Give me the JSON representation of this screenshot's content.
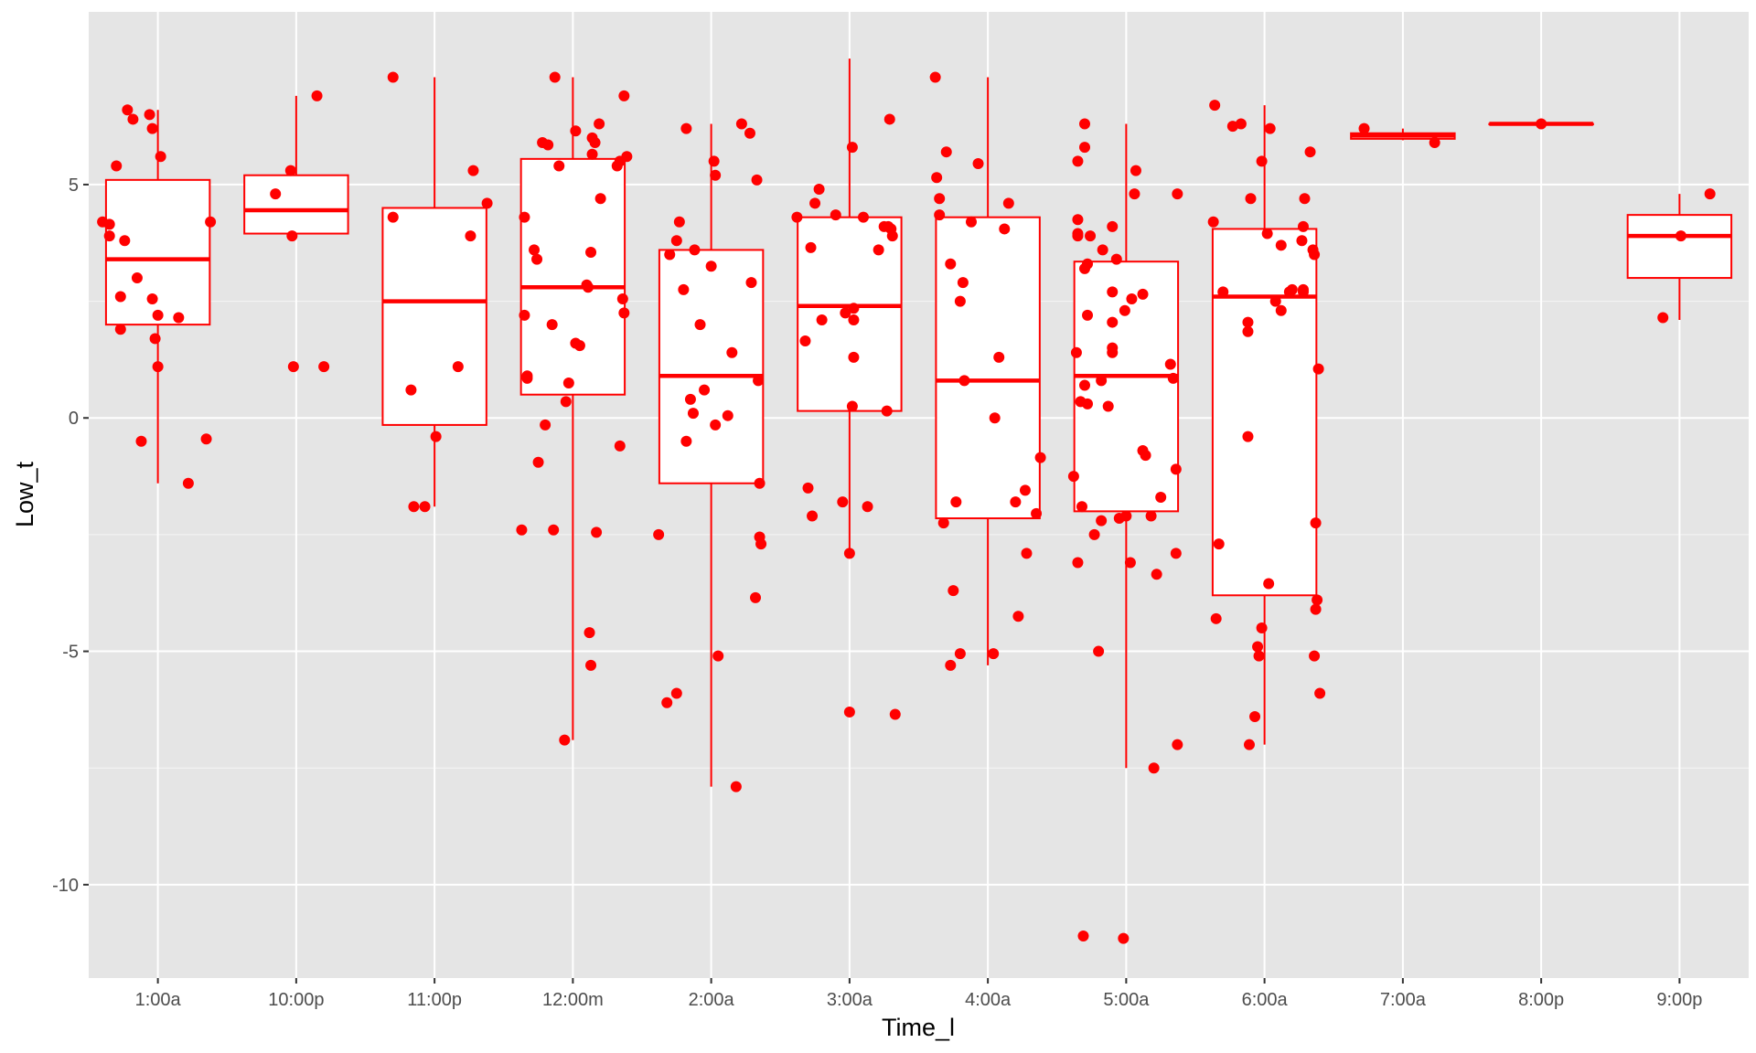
{
  "chart_data": {
    "type": "box",
    "xlabel": "Time_l",
    "ylabel": "Low_t",
    "ylim": [
      -12,
      8.7
    ],
    "y_ticks": [
      -10,
      -5,
      0,
      5
    ],
    "y_tick_labels": [
      "-10",
      "-5",
      "0",
      "5"
    ],
    "grid": true,
    "categories": [
      "1:00a",
      "10:00p",
      "11:00p",
      "12:00m",
      "2:00a",
      "3:00a",
      "4:00a",
      "5:00a",
      "6:00a",
      "7:00a",
      "8:00p",
      "9:00p"
    ],
    "boxes": [
      {
        "q1": 2.0,
        "median": 3.4,
        "q3": 5.1,
        "whisker_low": -1.4,
        "whisker_high": 6.6
      },
      {
        "q1": 3.95,
        "median": 4.45,
        "q3": 5.2,
        "whisker_low": 3.9,
        "whisker_high": 6.9
      },
      {
        "q1": -0.15,
        "median": 2.5,
        "q3": 4.5,
        "whisker_low": -1.9,
        "whisker_high": 7.3
      },
      {
        "q1": 0.5,
        "median": 2.8,
        "q3": 5.55,
        "whisker_low": -6.9,
        "whisker_high": 7.3
      },
      {
        "q1": -1.4,
        "median": 0.9,
        "q3": 3.6,
        "whisker_low": -7.9,
        "whisker_high": 6.3
      },
      {
        "q1": 0.15,
        "median": 2.4,
        "q3": 4.3,
        "whisker_low": -2.9,
        "whisker_high": 7.7
      },
      {
        "q1": -2.15,
        "median": 0.8,
        "q3": 4.3,
        "whisker_low": -5.3,
        "whisker_high": 7.3
      },
      {
        "q1": -2.0,
        "median": 0.9,
        "q3": 3.35,
        "whisker_low": -7.5,
        "whisker_high": 6.3
      },
      {
        "q1": -3.8,
        "median": 2.6,
        "q3": 4.05,
        "whisker_low": -7.0,
        "whisker_high": 6.7
      },
      {
        "q1": 5.98,
        "median": 6.05,
        "q3": 6.1,
        "whisker_low": 5.95,
        "whisker_high": 6.2
      },
      {
        "q1": 6.3,
        "median": 6.3,
        "q3": 6.3,
        "whisker_low": 6.3,
        "whisker_high": 6.3
      },
      {
        "q1": 3.0,
        "median": 3.9,
        "q3": 4.35,
        "whisker_low": 2.1,
        "whisker_high": 4.8
      }
    ],
    "points": [
      [
        [
          -0.4,
          4.2
        ],
        [
          -0.35,
          3.9
        ],
        [
          -0.35,
          4.15
        ],
        [
          -0.3,
          5.4
        ],
        [
          -0.27,
          2.6
        ],
        [
          -0.27,
          1.9
        ],
        [
          -0.24,
          3.8
        ],
        [
          -0.22,
          6.6
        ],
        [
          -0.18,
          6.4
        ],
        [
          -0.15,
          3.0
        ],
        [
          -0.12,
          -0.5
        ],
        [
          -0.06,
          6.5
        ],
        [
          -0.04,
          6.2
        ],
        [
          -0.04,
          2.55
        ],
        [
          -0.02,
          1.7
        ],
        [
          0.0,
          1.1
        ],
        [
          0.0,
          2.2
        ],
        [
          0.02,
          5.6
        ],
        [
          0.15,
          2.15
        ],
        [
          0.22,
          -1.4
        ],
        [
          0.35,
          -0.45
        ],
        [
          0.38,
          4.2
        ]
      ],
      [
        [
          -0.15,
          4.8
        ],
        [
          -0.02,
          1.1
        ],
        [
          -0.03,
          3.9
        ],
        [
          -0.04,
          5.3
        ],
        [
          0.15,
          6.9
        ],
        [
          0.2,
          1.1
        ]
      ],
      [
        [
          -0.3,
          7.3
        ],
        [
          -0.3,
          4.3
        ],
        [
          -0.17,
          0.6
        ],
        [
          -0.15,
          -1.9
        ],
        [
          -0.07,
          -1.9
        ],
        [
          0.01,
          -0.4
        ],
        [
          0.17,
          1.1
        ],
        [
          0.26,
          3.9
        ],
        [
          0.28,
          5.3
        ],
        [
          0.38,
          4.6
        ]
      ],
      [
        [
          -0.37,
          -2.4
        ],
        [
          -0.35,
          4.3
        ],
        [
          -0.35,
          2.2
        ],
        [
          -0.33,
          0.85
        ],
        [
          -0.33,
          0.9
        ],
        [
          -0.28,
          3.6
        ],
        [
          -0.26,
          3.4
        ],
        [
          -0.25,
          -0.95
        ],
        [
          -0.22,
          5.9
        ],
        [
          -0.2,
          -0.15
        ],
        [
          -0.18,
          5.85
        ],
        [
          -0.15,
          2.0
        ],
        [
          -0.14,
          -2.4
        ],
        [
          -0.13,
          7.3
        ],
        [
          -0.1,
          5.4
        ],
        [
          -0.06,
          -6.9
        ],
        [
          -0.05,
          0.35
        ],
        [
          -0.03,
          0.75
        ],
        [
          0.02,
          6.15
        ],
        [
          0.02,
          1.6
        ],
        [
          0.05,
          1.55
        ],
        [
          0.1,
          2.85
        ],
        [
          0.11,
          2.8
        ],
        [
          0.12,
          -4.6
        ],
        [
          0.13,
          -5.3
        ],
        [
          0.13,
          3.55
        ],
        [
          0.14,
          6.0
        ],
        [
          0.14,
          5.65
        ],
        [
          0.16,
          5.9
        ],
        [
          0.17,
          -2.45
        ],
        [
          0.19,
          6.3
        ],
        [
          0.2,
          4.7
        ],
        [
          0.32,
          5.4
        ],
        [
          0.34,
          5.5
        ],
        [
          0.34,
          -0.6
        ],
        [
          0.36,
          2.55
        ],
        [
          0.37,
          2.25
        ],
        [
          0.37,
          6.9
        ],
        [
          0.39,
          5.6
        ]
      ],
      [
        [
          -0.38,
          -2.5
        ],
        [
          -0.32,
          -6.1
        ],
        [
          -0.3,
          3.5
        ],
        [
          -0.25,
          3.8
        ],
        [
          -0.25,
          -5.9
        ],
        [
          -0.23,
          4.2
        ],
        [
          -0.2,
          2.75
        ],
        [
          -0.18,
          -0.5
        ],
        [
          -0.18,
          6.2
        ],
        [
          -0.15,
          0.4
        ],
        [
          -0.13,
          0.1
        ],
        [
          -0.12,
          3.6
        ],
        [
          -0.08,
          2.0
        ],
        [
          -0.05,
          0.6
        ],
        [
          0.0,
          3.25
        ],
        [
          0.02,
          5.5
        ],
        [
          0.03,
          5.2
        ],
        [
          0.03,
          -0.15
        ],
        [
          0.05,
          -5.1
        ],
        [
          0.12,
          0.05
        ],
        [
          0.15,
          1.4
        ],
        [
          0.18,
          -7.9
        ],
        [
          0.22,
          6.3
        ],
        [
          0.28,
          6.1
        ],
        [
          0.29,
          2.9
        ],
        [
          0.32,
          -3.85
        ],
        [
          0.33,
          5.1
        ],
        [
          0.34,
          0.8
        ],
        [
          0.35,
          -2.55
        ],
        [
          0.36,
          -2.7
        ],
        [
          0.35,
          -1.4
        ]
      ],
      [
        [
          -0.38,
          4.3
        ],
        [
          -0.32,
          1.65
        ],
        [
          -0.3,
          -1.5
        ],
        [
          -0.28,
          3.65
        ],
        [
          -0.27,
          -2.1
        ],
        [
          -0.25,
          4.6
        ],
        [
          -0.22,
          4.9
        ],
        [
          -0.2,
          2.1
        ],
        [
          -0.1,
          4.35
        ],
        [
          -0.05,
          -1.8
        ],
        [
          -0.03,
          2.25
        ],
        [
          0.0,
          -6.3
        ],
        [
          0.0,
          -2.9
        ],
        [
          0.02,
          5.8
        ],
        [
          0.03,
          2.35
        ],
        [
          0.03,
          2.1
        ],
        [
          0.03,
          1.3
        ],
        [
          0.02,
          0.25
        ],
        [
          0.1,
          4.3
        ],
        [
          0.13,
          -1.9
        ],
        [
          0.21,
          3.6
        ],
        [
          0.25,
          4.1
        ],
        [
          0.27,
          0.15
        ],
        [
          0.28,
          4.1
        ],
        [
          0.29,
          6.4
        ],
        [
          0.3,
          4.05
        ],
        [
          0.31,
          3.9
        ],
        [
          0.33,
          -6.35
        ]
      ],
      [
        [
          -0.38,
          7.3
        ],
        [
          -0.37,
          5.15
        ],
        [
          -0.35,
          4.7
        ],
        [
          -0.35,
          4.35
        ],
        [
          -0.3,
          5.7
        ],
        [
          -0.32,
          -2.25
        ],
        [
          -0.27,
          3.3
        ],
        [
          -0.27,
          -5.3
        ],
        [
          -0.25,
          -3.7
        ],
        [
          -0.23,
          -1.8
        ],
        [
          -0.2,
          -5.05
        ],
        [
          -0.2,
          2.5
        ],
        [
          -0.18,
          2.9
        ],
        [
          -0.17,
          0.8
        ],
        [
          -0.12,
          4.2
        ],
        [
          -0.07,
          5.45
        ],
        [
          0.05,
          0.0
        ],
        [
          0.04,
          -5.05
        ],
        [
          0.08,
          1.3
        ],
        [
          0.12,
          4.05
        ],
        [
          0.15,
          4.6
        ],
        [
          0.2,
          -1.8
        ],
        [
          0.22,
          -4.25
        ],
        [
          0.27,
          -1.55
        ],
        [
          0.28,
          -2.9
        ],
        [
          0.35,
          -2.05
        ],
        [
          0.38,
          -0.85
        ]
      ],
      [
        [
          -0.38,
          -1.25
        ],
        [
          -0.36,
          1.4
        ],
        [
          -0.35,
          5.5
        ],
        [
          -0.35,
          -3.1
        ],
        [
          -0.35,
          4.25
        ],
        [
          -0.35,
          3.9
        ],
        [
          -0.35,
          3.95
        ],
        [
          -0.33,
          0.35
        ],
        [
          -0.32,
          -1.9
        ],
        [
          -0.31,
          -11.1
        ],
        [
          -0.3,
          6.3
        ],
        [
          -0.3,
          5.8
        ],
        [
          -0.3,
          0.7
        ],
        [
          -0.3,
          3.2
        ],
        [
          -0.28,
          0.3
        ],
        [
          -0.28,
          3.3
        ],
        [
          -0.28,
          2.2
        ],
        [
          -0.26,
          3.9
        ],
        [
          -0.23,
          -2.5
        ],
        [
          -0.2,
          -5.0
        ],
        [
          -0.18,
          0.8
        ],
        [
          -0.18,
          -2.2
        ],
        [
          -0.17,
          3.6
        ],
        [
          -0.13,
          0.25
        ],
        [
          -0.1,
          4.1
        ],
        [
          -0.1,
          2.7
        ],
        [
          -0.1,
          2.05
        ],
        [
          -0.1,
          1.4
        ],
        [
          -0.1,
          1.5
        ],
        [
          -0.07,
          3.4
        ],
        [
          -0.05,
          -2.15
        ],
        [
          -0.02,
          -11.15
        ],
        [
          -0.01,
          2.3
        ],
        [
          0.0,
          -2.1
        ],
        [
          0.03,
          -3.1
        ],
        [
          0.04,
          2.55
        ],
        [
          0.06,
          4.8
        ],
        [
          0.07,
          5.3
        ],
        [
          0.12,
          -0.7
        ],
        [
          0.12,
          2.65
        ],
        [
          0.14,
          -0.8
        ],
        [
          0.18,
          -2.1
        ],
        [
          0.22,
          -3.35
        ],
        [
          0.2,
          -7.5
        ],
        [
          0.25,
          -1.7
        ],
        [
          0.32,
          1.15
        ],
        [
          0.34,
          0.85
        ],
        [
          0.36,
          -1.1
        ],
        [
          0.36,
          -2.9
        ],
        [
          0.37,
          -7.0
        ],
        [
          0.37,
          4.8
        ]
      ],
      [
        [
          -0.37,
          4.2
        ],
        [
          -0.36,
          6.7
        ],
        [
          -0.35,
          -4.3
        ],
        [
          -0.33,
          -2.7
        ],
        [
          -0.3,
          2.7
        ],
        [
          -0.23,
          6.25
        ],
        [
          -0.17,
          6.3
        ],
        [
          -0.12,
          -0.4
        ],
        [
          -0.11,
          -7.0
        ],
        [
          -0.12,
          2.05
        ],
        [
          -0.12,
          1.85
        ],
        [
          -0.1,
          4.7
        ],
        [
          -0.07,
          -6.4
        ],
        [
          -0.05,
          -4.9
        ],
        [
          -0.04,
          -5.1
        ],
        [
          -0.02,
          -4.5
        ],
        [
          -0.02,
          5.5
        ],
        [
          0.02,
          3.95
        ],
        [
          0.03,
          -3.55
        ],
        [
          0.04,
          6.2
        ],
        [
          0.08,
          2.5
        ],
        [
          0.12,
          2.3
        ],
        [
          0.12,
          3.7
        ],
        [
          0.18,
          2.7
        ],
        [
          0.2,
          2.75
        ],
        [
          0.28,
          2.7
        ],
        [
          0.28,
          4.1
        ],
        [
          0.27,
          3.8
        ],
        [
          0.28,
          2.75
        ],
        [
          0.29,
          4.7
        ],
        [
          0.33,
          5.7
        ],
        [
          0.35,
          3.6
        ],
        [
          0.36,
          3.5
        ],
        [
          0.37,
          -2.25
        ],
        [
          0.36,
          -5.1
        ],
        [
          0.37,
          -4.1
        ],
        [
          0.38,
          -3.9
        ],
        [
          0.39,
          1.05
        ],
        [
          0.4,
          -5.9
        ]
      ],
      [
        [
          -0.28,
          6.2
        ],
        [
          0.23,
          5.9
        ]
      ],
      [
        [
          0.0,
          6.3
        ]
      ],
      [
        [
          -0.12,
          2.15
        ],
        [
          0.01,
          3.9
        ],
        [
          0.22,
          4.8
        ]
      ]
    ]
  },
  "colors": {
    "series": "#ff0000",
    "panel_background": "#e5e5e5",
    "grid_major": "#ffffff",
    "box_fill": "#ffffff",
    "tick_label": "#4d4d4d",
    "axis_title": "#000000"
  }
}
